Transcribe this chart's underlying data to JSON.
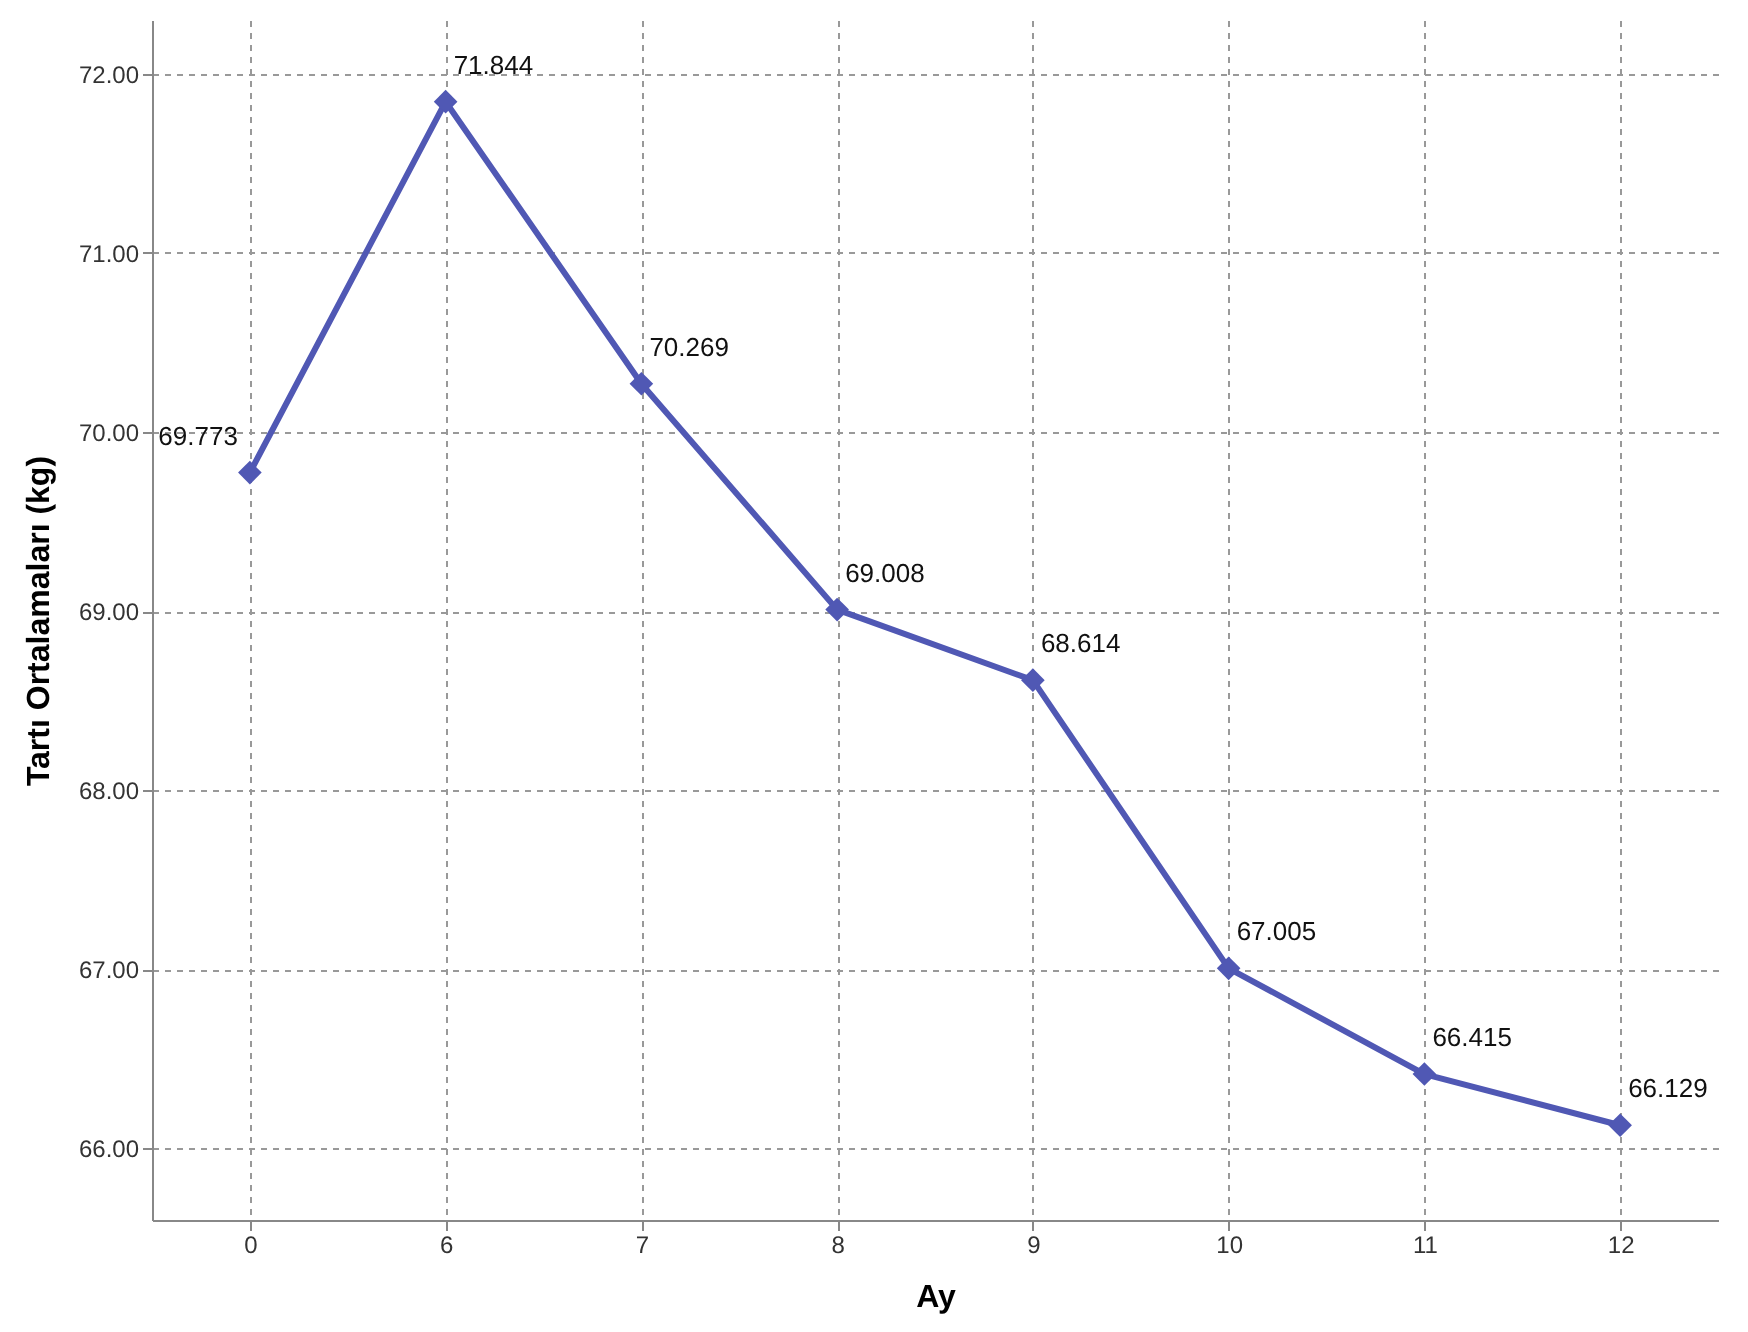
{
  "chart_data": {
    "type": "line",
    "xlabel": "Ay",
    "ylabel": "Tartı Ortalamaları (kg)",
    "categories": [
      "0",
      "6",
      "7",
      "8",
      "9",
      "10",
      "11",
      "12"
    ],
    "series": [
      {
        "color": "#5058b4",
        "values": [
          69.773,
          71.844,
          70.269,
          69.008,
          68.614,
          67.005,
          66.415,
          66.129
        ]
      }
    ],
    "ylim": [
      65.6,
      72.3
    ],
    "yticks": [
      {
        "value": 66,
        "label": "66.00"
      },
      {
        "value": 67,
        "label": "67.00"
      },
      {
        "value": 68,
        "label": "68.00"
      },
      {
        "value": 69,
        "label": "69.00"
      },
      {
        "value": 70,
        "label": "70.00"
      },
      {
        "value": 71,
        "label": "71.00"
      },
      {
        "value": 72,
        "label": "72.00"
      }
    ],
    "grid": true,
    "marker": "diamond",
    "line_style": "solid",
    "data_labels": true
  }
}
